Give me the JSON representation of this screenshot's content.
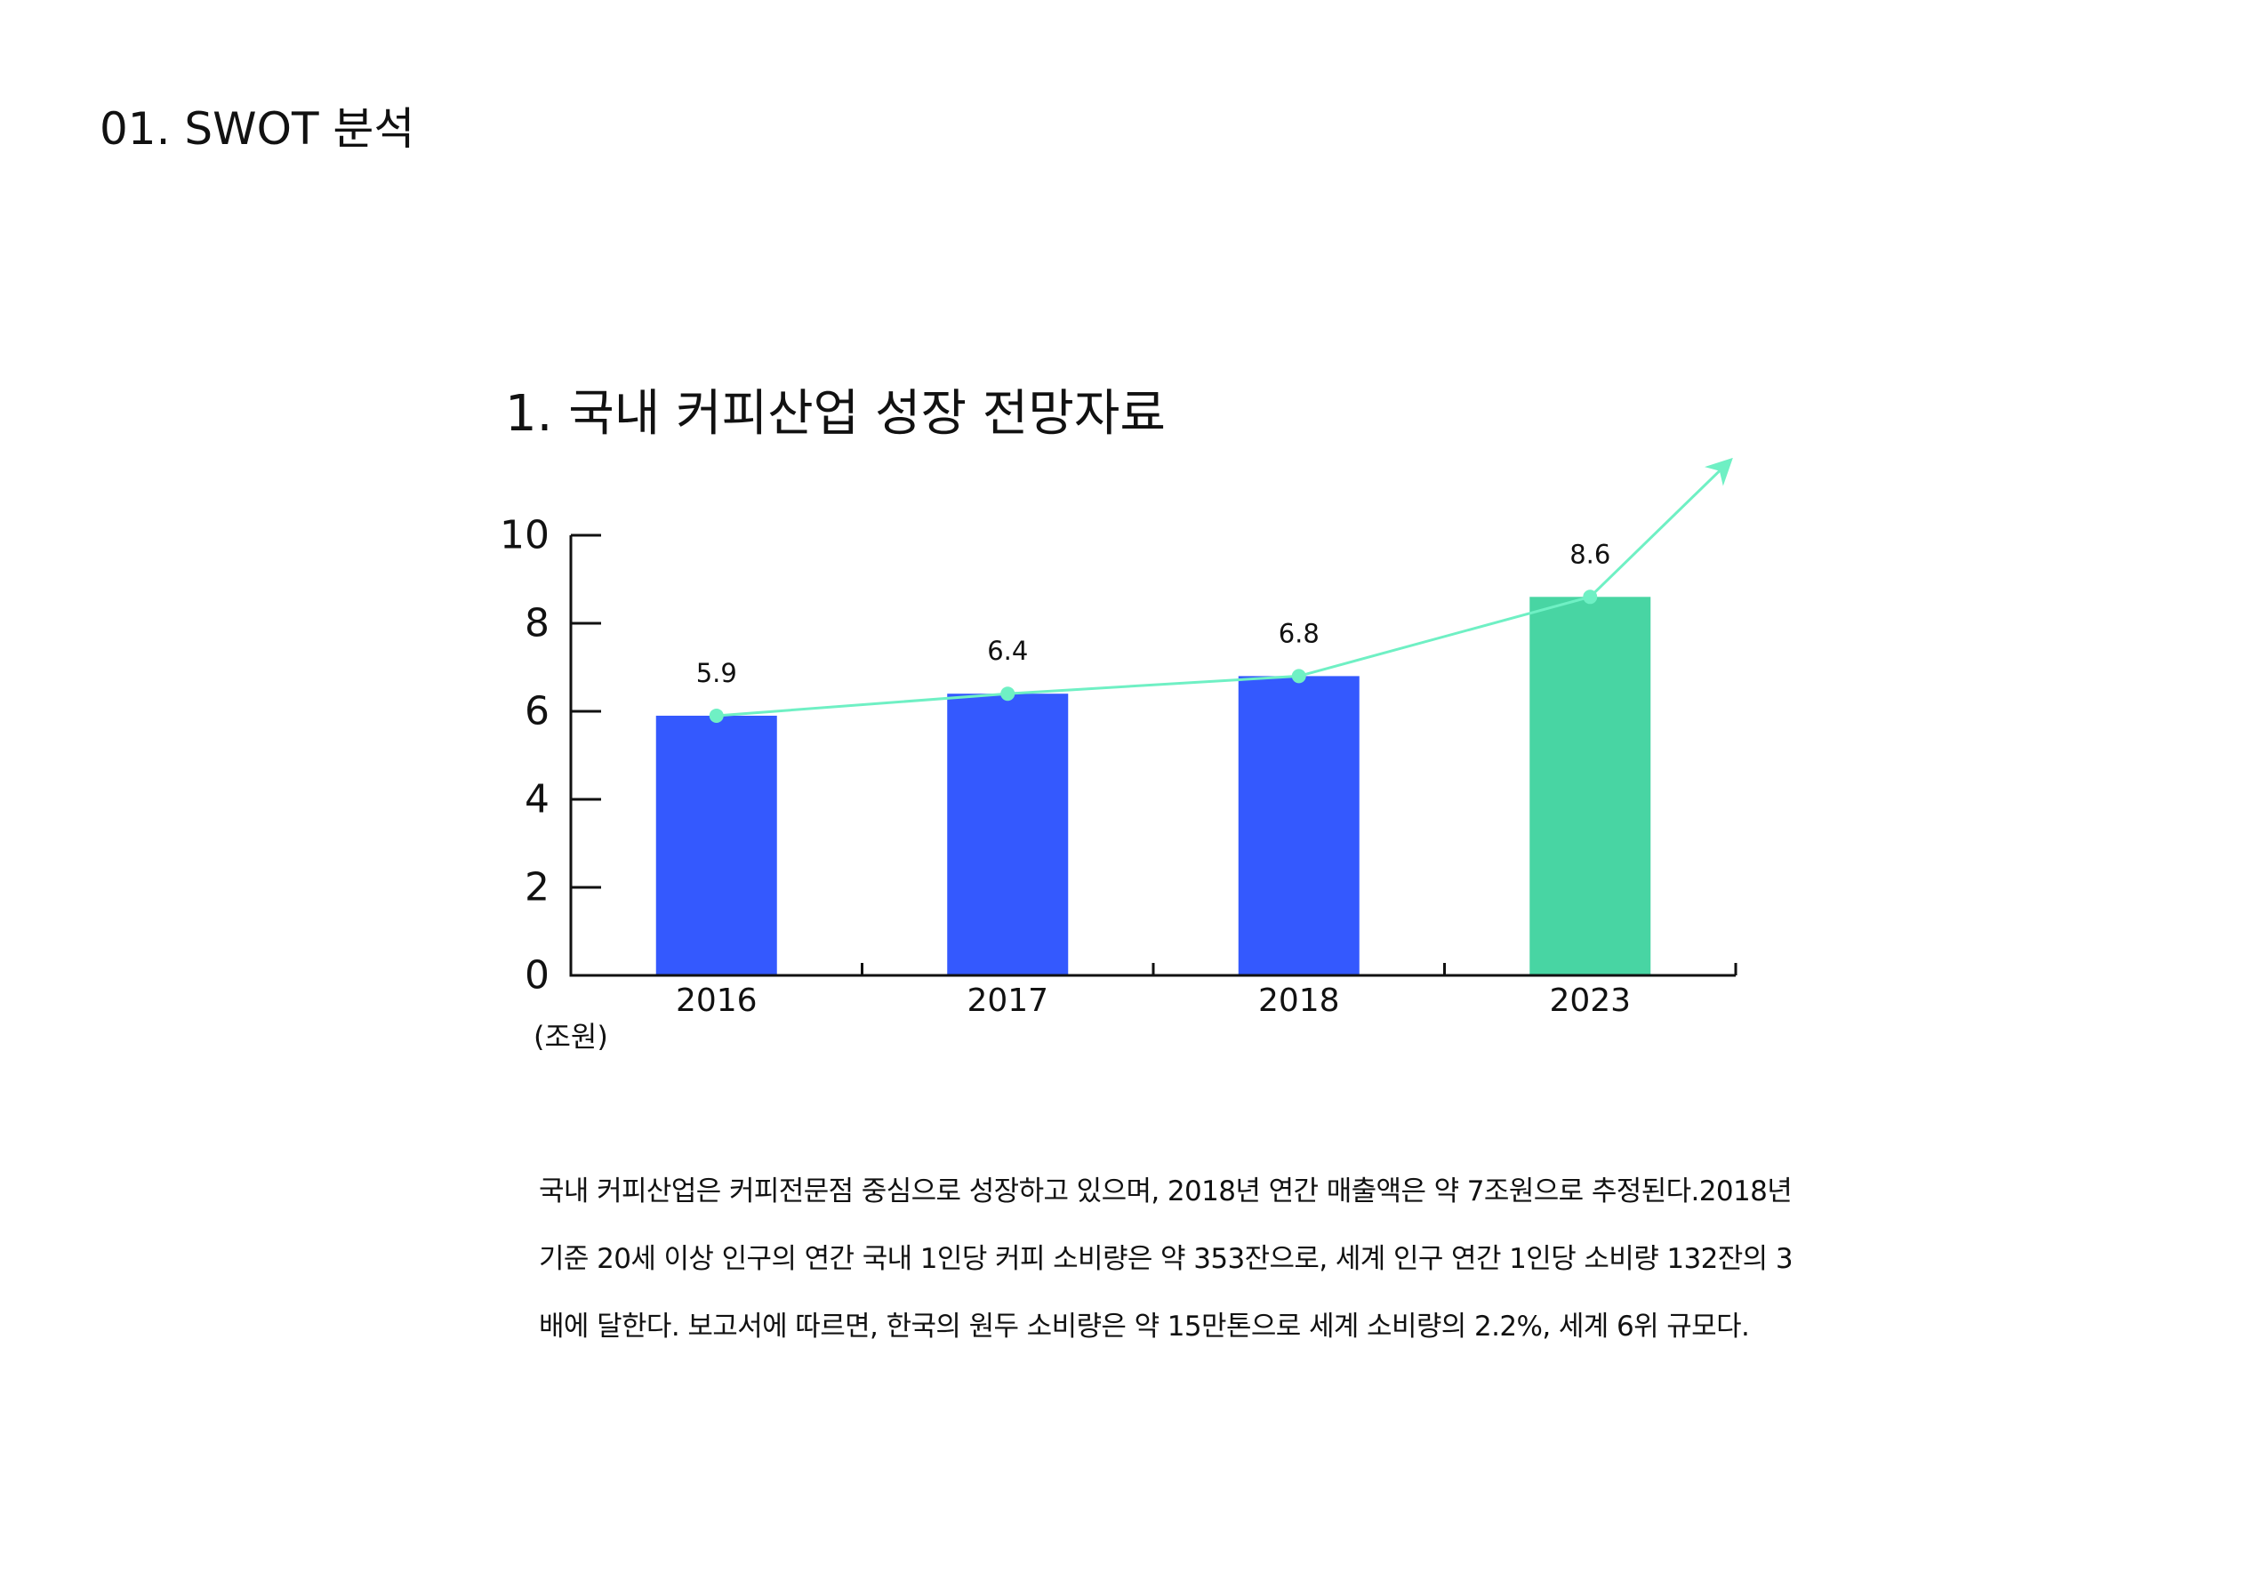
{
  "page": {
    "title": "01. SWOT 분석"
  },
  "chart_data": {
    "type": "bar",
    "title": "1. 국내 커피산업 성장 전망자료",
    "unit_label": "(조원)",
    "categories": [
      "2016",
      "2017",
      "2018",
      "2023"
    ],
    "values": [
      5.9,
      6.4,
      6.8,
      8.6
    ],
    "data_labels": [
      "5.9",
      "6.4",
      "6.8",
      "8.6"
    ],
    "ylim": [
      0,
      10
    ],
    "yticks": [
      "0",
      "2",
      "4",
      "6",
      "8",
      "10"
    ],
    "grid": false,
    "trend_line": true,
    "trend_arrow": true,
    "colors": {
      "bar": "#3459FE",
      "highlight_bar": "#48D5A3",
      "line": "#6FF0C4",
      "axis": "#111111"
    },
    "highlight_index": 3
  },
  "description": {
    "lines": [
      "국내 커피산업은 커피전문점 중심으로 성장하고 있으며, 2018년 연간 매출액은 약 7조원으로 추정된다.2018년",
      "기준 20세 이상 인구의 연간 국내 1인당 커피 소비량은 약 353잔으로, 세계 인구 연간 1인당 소비량 132잔의 3",
      "배에 달한다. 보고서에 따르면, 한국의 원두 소비량은 약 15만톤으로 세계 소비량의 2.2%, 세계 6위 규모다."
    ]
  }
}
